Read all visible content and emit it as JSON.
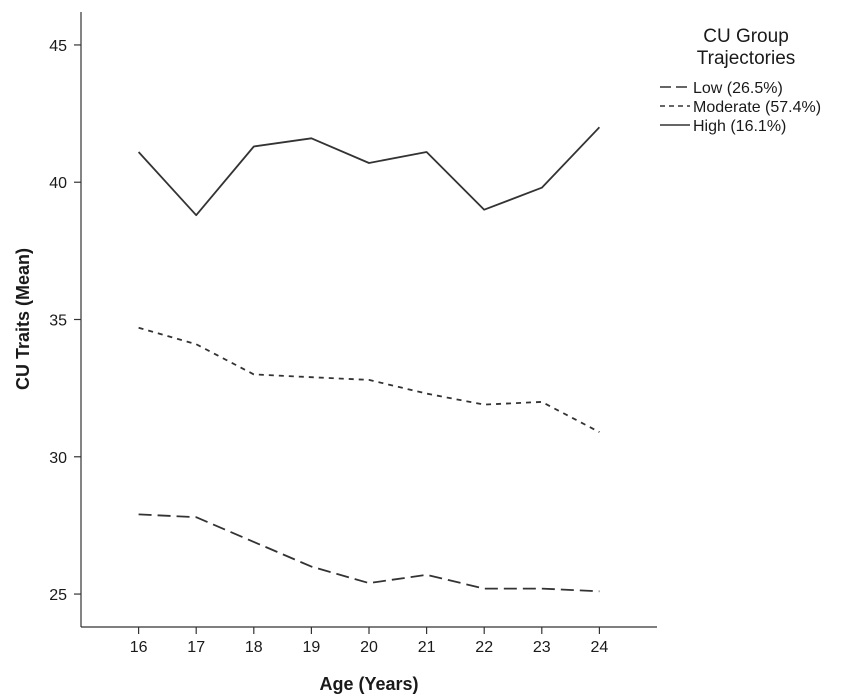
{
  "chart_data": {
    "type": "line",
    "title": "",
    "xlabel": "Age (Years)",
    "ylabel": "CU Traits (Mean)",
    "x": [
      16,
      17,
      18,
      19,
      20,
      21,
      22,
      23,
      24
    ],
    "xlim": [
      15,
      25
    ],
    "ylim": [
      23.8,
      46.2
    ],
    "yticks": [
      25,
      30,
      35,
      40,
      45
    ],
    "grid": false,
    "legend": {
      "title_lines": [
        "CU Group",
        "Trajectories"
      ],
      "position": "top-right"
    },
    "series": [
      {
        "name": "Low (26.5%)",
        "style": "long-dash",
        "values": [
          27.9,
          27.8,
          26.9,
          26.0,
          25.4,
          25.7,
          25.2,
          25.2,
          25.1
        ]
      },
      {
        "name": "Moderate (57.4%)",
        "style": "short-dash",
        "values": [
          34.7,
          34.1,
          33.0,
          32.9,
          32.8,
          32.3,
          31.9,
          32.0,
          30.9
        ]
      },
      {
        "name": "High (16.1%)",
        "style": "solid",
        "values": [
          41.1,
          38.8,
          41.3,
          41.6,
          40.7,
          41.1,
          39.0,
          39.8,
          42.0
        ]
      }
    ],
    "colors": {
      "line": "#333333",
      "axis": "#333333"
    }
  }
}
